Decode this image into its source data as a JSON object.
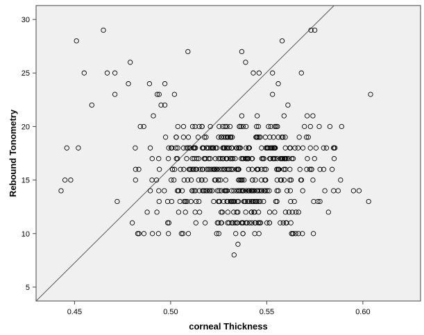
{
  "chart_data": {
    "type": "scatter",
    "xlabel": "corneal Thickness",
    "ylabel": "Rebound Tonometry",
    "xlim": [
      0.43,
      0.63
    ],
    "ylim": [
      3.7,
      31.3
    ],
    "xticks": [
      0.45,
      0.5,
      0.55,
      0.6
    ],
    "xtick_labels": [
      "0.45",
      "0.50",
      "0.55",
      "0.60"
    ],
    "yticks": [
      5,
      10,
      15,
      20,
      25,
      30
    ],
    "ytick_labels": [
      "5",
      "10",
      "15",
      "20",
      "25",
      "30"
    ],
    "grid": false,
    "legend": "none",
    "plot_background": "#f0f0f0",
    "marker": "open-circle",
    "marker_color": "#000000",
    "reference_line": {
      "from": [
        0.43,
        3.7
      ],
      "to": [
        0.585,
        31.3
      ],
      "color": "#555555"
    },
    "outlier_points": [
      [
        0.451,
        28
      ],
      [
        0.465,
        29
      ],
      [
        0.455,
        25
      ],
      [
        0.467,
        25
      ],
      [
        0.471,
        25
      ],
      [
        0.479,
        26
      ],
      [
        0.489,
        24
      ],
      [
        0.493,
        23
      ],
      [
        0.494,
        23
      ],
      [
        0.497,
        24
      ],
      [
        0.509,
        27
      ],
      [
        0.537,
        27
      ],
      [
        0.539,
        26
      ],
      [
        0.546,
        25
      ],
      [
        0.553,
        25
      ],
      [
        0.558,
        28
      ],
      [
        0.573,
        29
      ],
      [
        0.575,
        29
      ],
      [
        0.568,
        25
      ],
      [
        0.604,
        23
      ],
      [
        0.459,
        22
      ],
      [
        0.471,
        23
      ],
      [
        0.478,
        24
      ],
      [
        0.491,
        21
      ],
      [
        0.495,
        22
      ],
      [
        0.502,
        23
      ],
      [
        0.497,
        22
      ],
      [
        0.443,
        14
      ],
      [
        0.445,
        15
      ],
      [
        0.448,
        15
      ],
      [
        0.446,
        18
      ],
      [
        0.452,
        18
      ],
      [
        0.598,
        14
      ],
      [
        0.603,
        13
      ],
      [
        0.535,
        9
      ],
      [
        0.533,
        8
      ],
      [
        0.543,
        25
      ],
      [
        0.556,
        24
      ],
      [
        0.553,
        23
      ],
      [
        0.561,
        22
      ],
      [
        0.545,
        21
      ],
      [
        0.537,
        21
      ],
      [
        0.559,
        21
      ],
      [
        0.571,
        21
      ],
      [
        0.574,
        21
      ]
    ],
    "clusters": [
      {
        "ymin": 10,
        "ymax": 20,
        "xmin": 0.48,
        "xmax": 0.59,
        "count": 600,
        "center": 0.535
      }
    ]
  }
}
